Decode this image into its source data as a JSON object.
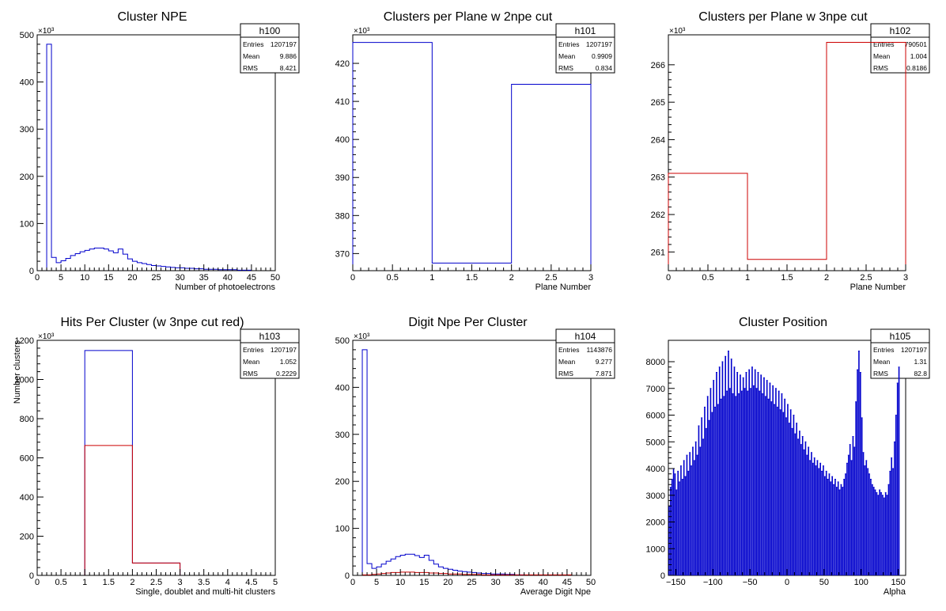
{
  "chart_data": [
    {
      "type": "bar",
      "histname": "h100",
      "title": "Cluster NPE",
      "xlabel": "Number of photoelectrons",
      "ylabel": "",
      "exponent": "×10³",
      "xlim": [
        0,
        50
      ],
      "ylim": [
        0,
        500
      ],
      "xticks": [
        0,
        5,
        10,
        15,
        20,
        25,
        30,
        35,
        40,
        45,
        50
      ],
      "xticklabels": [
        "0",
        "5",
        "10",
        "15",
        "20",
        "25",
        "30",
        "35",
        "40",
        "45",
        "50"
      ],
      "yticks": [
        0,
        100,
        200,
        300,
        400,
        500
      ],
      "yticklabels": [
        "0",
        "100",
        "200",
        "300",
        "400",
        "500"
      ],
      "stats": {
        "Entries": "1207197",
        "Mean": "9.886",
        "RMS": "8.421"
      },
      "series": [
        {
          "color": "#0000cc",
          "bin_edges_start": 2,
          "bin_width": 1,
          "values": [
            480,
            28,
            17,
            21,
            26,
            32,
            36,
            40,
            43,
            46,
            48,
            48,
            46,
            42,
            38,
            46,
            35,
            25,
            20,
            17,
            15,
            13,
            11,
            10,
            9,
            8,
            7,
            6,
            6,
            5,
            5,
            4,
            4,
            3,
            3,
            3,
            2,
            2,
            2,
            2,
            1,
            1,
            1
          ]
        }
      ]
    },
    {
      "type": "bar",
      "histname": "h101",
      "title": "Clusters per Plane w 2npe cut",
      "xlabel": "Plane Number",
      "ylabel": "",
      "exponent": "×10³",
      "xlim": [
        0,
        3
      ],
      "ylim": [
        365.5,
        427.5
      ],
      "xticks": [
        0,
        0.5,
        1,
        1.5,
        2,
        2.5,
        3
      ],
      "xticklabels": [
        "0",
        "0.5",
        "1",
        "1.5",
        "2",
        "2.5",
        "3"
      ],
      "yticks": [
        370,
        380,
        390,
        400,
        410,
        420
      ],
      "yticklabels": [
        "370",
        "380",
        "390",
        "400",
        "410",
        "420"
      ],
      "stats": {
        "Entries": "1207197",
        "Mean": "0.9909",
        "RMS": "0.834"
      },
      "series": [
        {
          "color": "#0000cc",
          "bin_edges_start": 0,
          "bin_width": 1,
          "values": [
            425.5,
            367.5,
            414.5
          ]
        }
      ]
    },
    {
      "type": "bar",
      "histname": "h102",
      "title": "Clusters per Plane w 3npe cut",
      "xlabel": "Plane Number",
      "ylabel": "",
      "exponent": "×10³",
      "xlim": [
        0,
        3
      ],
      "ylim": [
        260.5,
        266.8
      ],
      "xticks": [
        0,
        0.5,
        1,
        1.5,
        2,
        2.5,
        3
      ],
      "xticklabels": [
        "0",
        "0.5",
        "1",
        "1.5",
        "2",
        "2.5",
        "3"
      ],
      "yticks": [
        261,
        262,
        263,
        264,
        265,
        266
      ],
      "yticklabels": [
        "261",
        "262",
        "263",
        "264",
        "265",
        "266"
      ],
      "stats": {
        "Entries": "790501",
        "Mean": "1.004",
        "RMS": "0.8186"
      },
      "series": [
        {
          "color": "#cc0000",
          "bin_edges_start": 0,
          "bin_width": 1,
          "values": [
            263.1,
            260.8,
            266.6
          ]
        }
      ]
    },
    {
      "type": "bar",
      "histname": "h103",
      "title": "Hits Per Cluster (w 3npe cut red)",
      "xlabel": "Single, doublet and multi-hit clusters",
      "ylabel": "Number clusters",
      "exponent": "×10³",
      "xlim": [
        0,
        5
      ],
      "ylim": [
        0,
        1200
      ],
      "xticks": [
        0,
        0.5,
        1,
        1.5,
        2,
        2.5,
        3,
        3.5,
        4,
        4.5,
        5
      ],
      "xticklabels": [
        "0",
        "0.5",
        "1",
        "1.5",
        "2",
        "2.5",
        "3",
        "3.5",
        "4",
        "4.5",
        "5"
      ],
      "yticks": [
        0,
        200,
        400,
        600,
        800,
        1000,
        1200
      ],
      "yticklabels": [
        "0",
        "200",
        "400",
        "600",
        "800",
        "1000",
        "1200"
      ],
      "stats": {
        "Entries": "1207197",
        "Mean": "1.052",
        "RMS": "0.2229"
      },
      "series": [
        {
          "color": "#0000cc",
          "bin_edges_start": 1,
          "bin_width": 1,
          "values": [
            1148,
            63
          ]
        },
        {
          "color": "#cc0000",
          "bin_edges_start": 1,
          "bin_width": 1,
          "values": [
            663,
            63
          ]
        }
      ]
    },
    {
      "type": "bar",
      "histname": "h104",
      "title": "Digit Npe Per Cluster",
      "xlabel": "Average Digit Npe",
      "ylabel": "",
      "exponent": "×10³",
      "xlim": [
        0,
        50
      ],
      "ylim": [
        0,
        500
      ],
      "xticks": [
        0,
        5,
        10,
        15,
        20,
        25,
        30,
        35,
        40,
        45,
        50
      ],
      "xticklabels": [
        "0",
        "5",
        "10",
        "15",
        "20",
        "25",
        "30",
        "35",
        "40",
        "45",
        "50"
      ],
      "yticks": [
        0,
        100,
        200,
        300,
        400,
        500
      ],
      "yticklabels": [
        "0",
        "100",
        "200",
        "300",
        "400",
        "500"
      ],
      "stats": {
        "Entries": "1143876",
        "Mean": "9.277",
        "RMS": "7.871"
      },
      "series": [
        {
          "color": "#0000cc",
          "bin_edges_start": 2,
          "bin_width": 1,
          "values": [
            480,
            25,
            15,
            18,
            24,
            30,
            35,
            40,
            43,
            45,
            45,
            42,
            38,
            43,
            32,
            24,
            18,
            15,
            13,
            11,
            9,
            8,
            7,
            6,
            5,
            4,
            4,
            3,
            3,
            3,
            2,
            2,
            1,
            1
          ]
        },
        {
          "color": "#cc0000",
          "bin_edges_start": 2,
          "bin_width": 1,
          "values": [
            1,
            1,
            2,
            3,
            4,
            5,
            6,
            6,
            7,
            7,
            7,
            6,
            6,
            6,
            5,
            5,
            4,
            4,
            3,
            3,
            3,
            2,
            2,
            2,
            2,
            1,
            1,
            1,
            1,
            1,
            1,
            1,
            1,
            1,
            1,
            1,
            1,
            1,
            1,
            1,
            1,
            1,
            1,
            1
          ]
        }
      ]
    },
    {
      "type": "bar",
      "histname": "h105",
      "title": "Cluster Position",
      "xlabel": "Alpha",
      "ylabel": "",
      "exponent": "",
      "xlim": [
        -160,
        160
      ],
      "ylim": [
        0,
        8800
      ],
      "xticks": [
        -150,
        -100,
        -50,
        0,
        50,
        100,
        150
      ],
      "xticklabels": [
        "−150",
        "−100",
        "−50",
        "0",
        "50",
        "100",
        "150"
      ],
      "yticks": [
        0,
        1000,
        2000,
        3000,
        4000,
        5000,
        6000,
        7000,
        8000
      ],
      "yticklabels": [
        "0",
        "1000",
        "2000",
        "3000",
        "4000",
        "5000",
        "6000",
        "7000",
        "8000"
      ],
      "stats": {
        "Entries": "1207197",
        "Mean": "1.31",
        "RMS": "82.8"
      },
      "series": [
        {
          "color": "#0000cc",
          "style": "comb",
          "bin_edges_start": -160,
          "bin_width": 2,
          "values": [
            2600,
            3300,
            3600,
            4000,
            3800,
            3200,
            3900,
            3500,
            4100,
            3600,
            4300,
            3700,
            4500,
            3900,
            4600,
            4100,
            4800,
            4300,
            5000,
            4500,
            5600,
            4800,
            5900,
            5100,
            6300,
            5500,
            6700,
            5800,
            7000,
            6100,
            7300,
            6300,
            7600,
            6400,
            7800,
            6600,
            8000,
            6700,
            8200,
            6900,
            8400,
            7000,
            8100,
            6800,
            7800,
            6700,
            7600,
            6800,
            7500,
            6900,
            7400,
            7000,
            7600,
            6900,
            7700,
            7000,
            7800,
            7100,
            7700,
            7000,
            7600,
            6900,
            7500,
            6800,
            7400,
            6700,
            7300,
            6600,
            7200,
            6500,
            7100,
            6400,
            7000,
            6300,
            6900,
            6200,
            6800,
            6100,
            6600,
            5900,
            6400,
            5700,
            6200,
            5500,
            6000,
            5300,
            5700,
            5100,
            5400,
            4900,
            5200,
            4700,
            5000,
            4500,
            4800,
            4300,
            4600,
            4200,
            4400,
            4100,
            4300,
            4000,
            4200,
            3900,
            4100,
            3700,
            3900,
            3600,
            3800,
            3500,
            3700,
            3400,
            3600,
            3300,
            3500,
            3200,
            3400,
            3300,
            3600,
            3800,
            4200,
            4500,
            4900,
            4300,
            5200,
            4800,
            6500,
            7700,
            8400,
            7600,
            5900,
            4600,
            4100,
            4300,
            4000,
            3800,
            3600,
            3400,
            3300,
            3200,
            3100,
            3000,
            3200,
            3100,
            3000,
            2900,
            3100,
            3000,
            3400,
            3900,
            4400,
            4000,
            5000,
            6000,
            7200,
            7800
          ]
        }
      ]
    }
  ]
}
